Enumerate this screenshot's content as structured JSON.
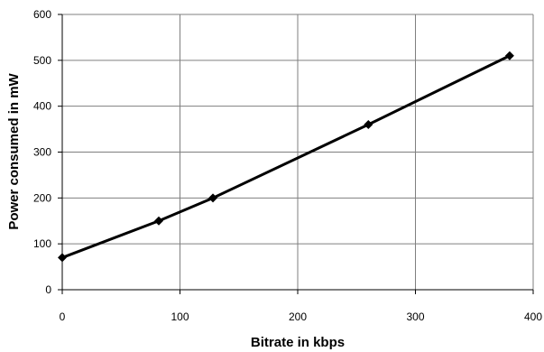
{
  "chart_data": {
    "type": "line",
    "title": "",
    "xlabel": "Bitrate in kbps",
    "ylabel": "Power consumed in mW",
    "xlim": [
      0,
      400
    ],
    "ylim": [
      0,
      600
    ],
    "x_ticks": [
      0,
      100,
      200,
      300,
      400
    ],
    "y_ticks": [
      0,
      100,
      200,
      300,
      400,
      500,
      600
    ],
    "grid": true,
    "legend": "none",
    "series": [
      {
        "x": [
          0,
          82,
          128,
          260,
          380
        ],
        "y": [
          70,
          150,
          200,
          360,
          510
        ],
        "color": "#000000",
        "marker": "diamond"
      }
    ]
  }
}
